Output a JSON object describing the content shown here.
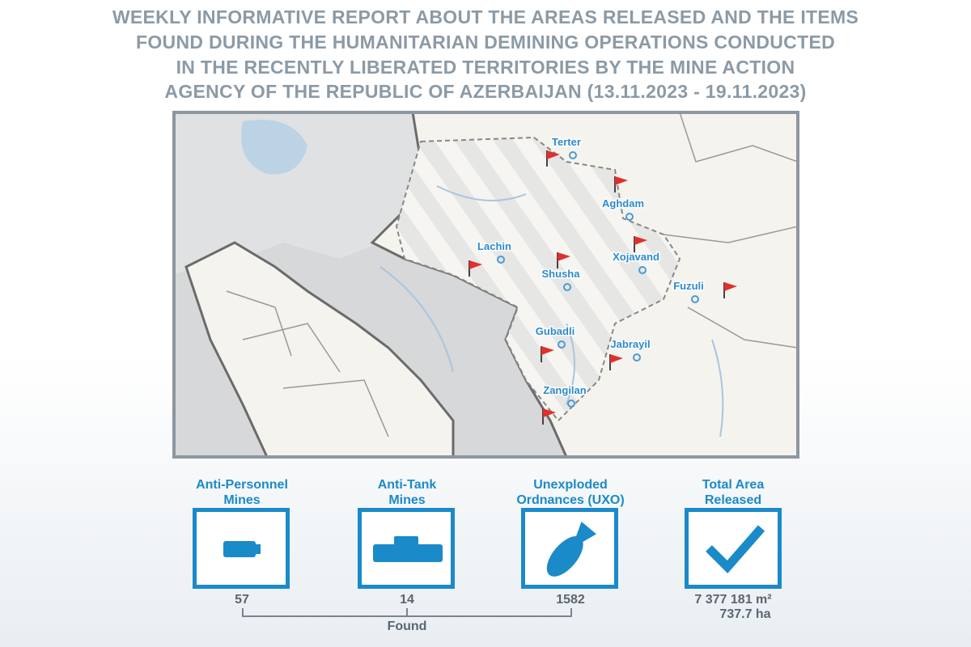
{
  "header": {
    "title_lines": [
      "WEEKLY INFORMATIVE REPORT ABOUT THE AREAS RELEASED AND THE ITEMS",
      "FOUND DURING THE HUMANITARIAN DEMINING OPERATIONS CONDUCTED",
      "IN THE RECENTLY LIBERATED TERRITORIES BY THE MINE ACTION",
      "AGENCY OF THE REPUBLIC OF AZERBAIJAN (13.11.2023 - 19.11.2023)"
    ]
  },
  "map": {
    "places": [
      "Terter",
      "Aghdam",
      "Lachin",
      "Xojavand",
      "Shusha",
      "Fuzuli",
      "Gubadli",
      "Jabrayil",
      "Zangilan"
    ]
  },
  "stats": [
    {
      "label_lines": [
        "Anti-Personnel",
        "Mines"
      ],
      "value": "57"
    },
    {
      "label_lines": [
        "Anti-Tank",
        "Mines"
      ],
      "value": "14"
    },
    {
      "label_lines": [
        "Unexploded",
        "Ordnances (UXO)"
      ],
      "value": "1582"
    },
    {
      "label_lines": [
        "Total Area",
        "Released"
      ],
      "value_lines": [
        "7 377 181 m²",
        "737.7 ha"
      ]
    }
  ],
  "found_label": "Found"
}
